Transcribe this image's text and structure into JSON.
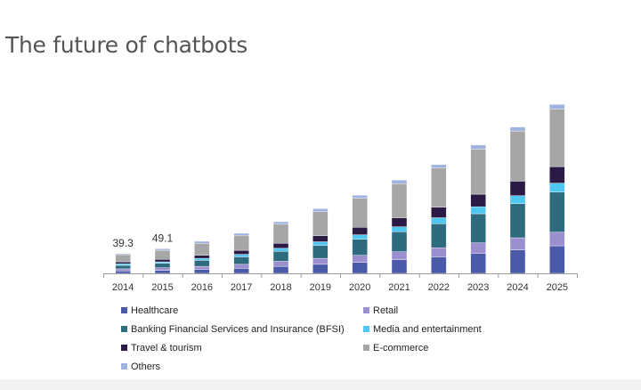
{
  "page": {
    "title": "The future of chatbots"
  },
  "legend": [
    {
      "label": "Healthcare",
      "color": "#4a5aa8"
    },
    {
      "label": "Retail",
      "color": "#9b8fd0"
    },
    {
      "label": "Banking Financial Services and Insurance (BFSI)",
      "color": "#2e6b7f"
    },
    {
      "label": "Media and entertainment",
      "color": "#4fc7f0"
    },
    {
      "label": "Travel & tourism",
      "color": "#2a1a45"
    },
    {
      "label": "E-commerce",
      "color": "#a6a6a6"
    },
    {
      "label": "Others",
      "color": "#9fb3e0"
    }
  ],
  "chart_data": {
    "type": "bar",
    "stacked": true,
    "categories": [
      "2014",
      "2015",
      "2016",
      "2017",
      "2018",
      "2019",
      "2020",
      "2021",
      "2022",
      "2023",
      "2024",
      "2025"
    ],
    "series": [
      {
        "name": "Healthcare",
        "color": "#4a5aa8",
        "values": [
          5,
          6,
          8,
          10,
          14,
          18,
          22,
          27,
          33,
          40,
          47,
          55
        ]
      },
      {
        "name": "Retail",
        "color": "#9b8fd0",
        "values": [
          4,
          5,
          6,
          8,
          10,
          12,
          14,
          16,
          18,
          21,
          24,
          27
        ]
      },
      {
        "name": "Banking Financial Services and Insurance (BFSI)",
        "color": "#2e6b7f",
        "values": [
          7,
          9,
          12,
          15,
          20,
          26,
          32,
          40,
          48,
          58,
          68,
          80
        ]
      },
      {
        "name": "Media and entertainment",
        "color": "#4fc7f0",
        "values": [
          3,
          3,
          4,
          5,
          6,
          7,
          9,
          10,
          12,
          14,
          16,
          18
        ]
      },
      {
        "name": "Travel & tourism",
        "color": "#2a1a45",
        "values": [
          4,
          5,
          6,
          8,
          10,
          12,
          15,
          18,
          21,
          25,
          29,
          33
        ]
      },
      {
        "name": "E-commerce",
        "color": "#a6a6a6",
        "values": [
          14.3,
          18.1,
          24,
          30,
          38,
          48,
          58,
          68,
          78,
          90,
          100,
          115
        ]
      },
      {
        "name": "Others",
        "color": "#9fb3e0",
        "values": [
          2,
          3,
          4,
          4,
          5,
          6,
          6,
          7,
          7,
          8,
          8,
          9
        ]
      }
    ],
    "totals": [
      39.3,
      49.1,
      null,
      null,
      null,
      null,
      null,
      null,
      null,
      null,
      null,
      null
    ],
    "data_labels": [
      "39.3",
      "49.1"
    ],
    "ylim": [
      0,
      350
    ],
    "grid": false,
    "legend_position": "bottom",
    "xlabel": "",
    "ylabel": ""
  }
}
